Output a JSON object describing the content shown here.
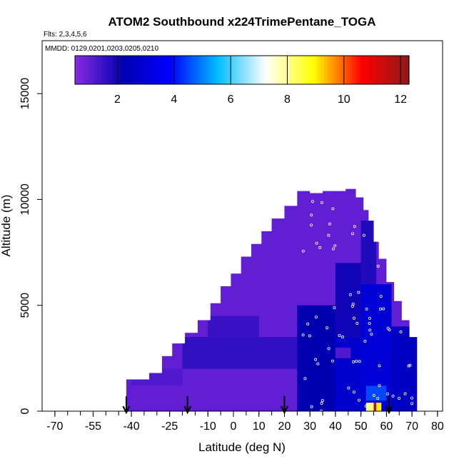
{
  "chart_data": {
    "type": "heatmap",
    "title": "ATOM2 Southbound x224TrimePentane_TOGA",
    "flights_note": "Flts: 2,3,4,5,6",
    "dates_note": "MMDD: 0129,0201,0203,0205,0210",
    "xlabel": "Latitude (deg N)",
    "ylabel": "Altitude (m)",
    "xlim": [
      -75,
      82
    ],
    "ylim": [
      0,
      17500
    ],
    "x_ticks": [
      -70,
      -55,
      -40,
      -25,
      -10,
      0,
      10,
      20,
      30,
      40,
      50,
      60,
      70,
      80
    ],
    "x_tick_labels": [
      "-70",
      "-55",
      "-40",
      "-25",
      "-10",
      "0",
      "10",
      "20",
      "30",
      "40",
      "50",
      "60",
      "70",
      "80"
    ],
    "y_ticks": [
      0,
      5000,
      10000,
      15000
    ],
    "y_tick_labels": [
      "0",
      "5000",
      "10000",
      "15000"
    ],
    "colorbar": {
      "range": [
        0.5,
        12.3
      ],
      "ticks": [
        2,
        4,
        6,
        8,
        10,
        12
      ],
      "tick_labels": [
        "2",
        "4",
        "6",
        "8",
        "10",
        "12"
      ],
      "colors": [
        "#8a2be2",
        "#0000b0",
        "#0000ff",
        "#00bfff",
        "#ffffff",
        "#ffff00",
        "#ff0000",
        "#8b1a1a"
      ]
    },
    "profile_markers_lat": [
      -42,
      -18,
      20,
      61
    ],
    "envelope": [
      [
        -42,
        1500
      ],
      [
        -33,
        1800
      ],
      [
        -28,
        2600
      ],
      [
        -24,
        3200
      ],
      [
        -19,
        3700
      ],
      [
        -14,
        4300
      ],
      [
        -9,
        5100
      ],
      [
        -5,
        5900
      ],
      [
        -1,
        6500
      ],
      [
        3,
        7300
      ],
      [
        7,
        7900
      ],
      [
        11,
        8500
      ],
      [
        15,
        9100
      ],
      [
        20,
        9700
      ],
      [
        25,
        10400
      ],
      [
        30,
        10300
      ],
      [
        35,
        10400
      ],
      [
        40,
        10400
      ],
      [
        44,
        10500
      ],
      [
        48,
        10100
      ],
      [
        51,
        9500
      ],
      [
        53,
        9000
      ],
      [
        55,
        8000
      ],
      [
        57,
        7200
      ],
      [
        60,
        6100
      ],
      [
        63,
        5200
      ],
      [
        66,
        4300
      ],
      [
        69,
        3500
      ],
      [
        72,
        2500
      ],
      [
        72,
        0
      ]
    ],
    "patches": [
      {
        "lat": [
          25,
          40
        ],
        "alt": [
          0,
          5000
        ],
        "value": 2.2
      },
      {
        "lat": [
          40,
          50
        ],
        "alt": [
          0,
          3500
        ],
        "value": 2.8
      },
      {
        "lat": [
          40,
          50
        ],
        "alt": [
          3500,
          7000
        ],
        "value": 2.0
      },
      {
        "lat": [
          50,
          62
        ],
        "alt": [
          0,
          6000
        ],
        "value": 3.0
      },
      {
        "lat": [
          50,
          56
        ],
        "alt": [
          6000,
          9000
        ],
        "value": 1.8
      },
      {
        "lat": [
          62,
          72
        ],
        "alt": [
          0,
          4000
        ],
        "value": 2.6
      },
      {
        "lat": [
          -20,
          25
        ],
        "alt": [
          2000,
          3500
        ],
        "value": 1.6
      },
      {
        "lat": [
          -40,
          -20
        ],
        "alt": [
          1200,
          2000
        ],
        "value": 1.2
      },
      {
        "lat": [
          -10,
          10
        ],
        "alt": [
          3500,
          4500
        ],
        "value": 1.5
      },
      {
        "lat": [
          40,
          46
        ],
        "alt": [
          2500,
          3000
        ],
        "value": 1.2
      },
      {
        "lat": [
          52,
          60
        ],
        "alt": [
          500,
          1200
        ],
        "value": 4.5
      },
      {
        "lat": [
          52,
          55
        ],
        "alt": [
          0,
          400
        ],
        "value": 8.0
      },
      {
        "lat": [
          55,
          56
        ],
        "alt": [
          0,
          400
        ],
        "value": 11.5
      },
      {
        "lat": [
          56,
          58
        ],
        "alt": [
          0,
          400
        ],
        "value": 9.0
      }
    ]
  }
}
